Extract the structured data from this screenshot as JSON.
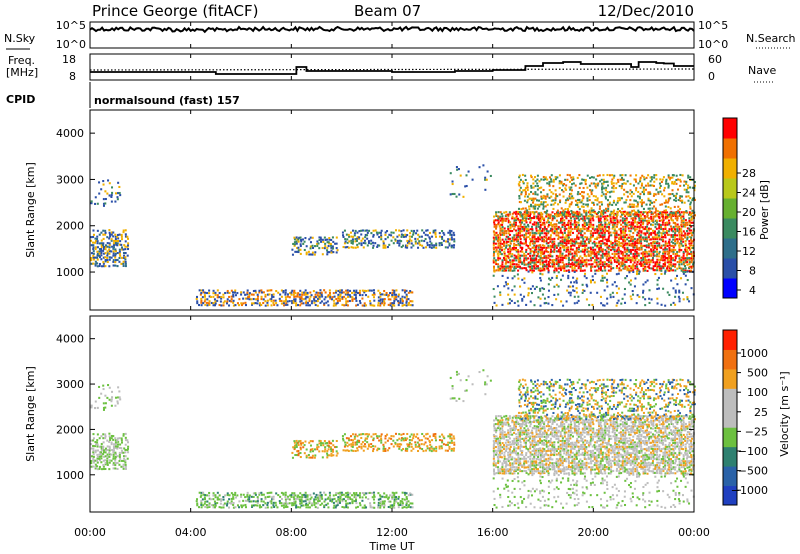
{
  "header": {
    "station": "Prince George (fitACF)",
    "beam": "Beam 07",
    "date": "12/Dec/2010",
    "cpid_label": "CPID",
    "cpid_value": "normalsound (fast) 157"
  },
  "nsky_panel": {
    "left_label": "N.Sky",
    "right_label": "N.Search",
    "left_ticks": [
      "10^5",
      "10^0"
    ],
    "right_ticks": [
      "10^5",
      "10^0"
    ]
  },
  "freq_panel": {
    "left_label_1": "Freq.",
    "left_label_2": "[MHz]",
    "right_label": "Nave",
    "left_ticks": [
      "18",
      "8"
    ],
    "right_ticks": [
      "60",
      "0"
    ]
  },
  "chart_data": [
    {
      "type": "heatmap",
      "name": "power",
      "ylabel": "Slant Range [km]",
      "ylim": [
        180,
        4500
      ],
      "y_ticks": [
        "1000",
        "2000",
        "3000",
        "4000"
      ],
      "colorbar_label": "Power [dB]",
      "colorbar_ticks": [
        "28",
        "24",
        "20",
        "16",
        "12",
        "8",
        "4"
      ],
      "colors": [
        "#0000ff",
        "#2a4fa8",
        "#2e6e8a",
        "#3a8a60",
        "#66b030",
        "#b8c81a",
        "#f0b000",
        "#f07000",
        "#ff0000"
      ]
    },
    {
      "type": "heatmap",
      "name": "velocity",
      "ylabel": "Slant Range [km]",
      "ylim": [
        180,
        4500
      ],
      "y_ticks": [
        "1000",
        "2000",
        "3000",
        "4000"
      ],
      "colorbar_label": "Velocity [m s⁻¹]",
      "colorbar_ticks": [
        "1000",
        "500",
        "100",
        "25",
        "−25",
        "−100",
        "−500",
        "−1000"
      ],
      "colors": [
        "#2040c0",
        "#2a62a8",
        "#2e8070",
        "#6cc040",
        "#bdbdbd",
        "#bdbdbd",
        "#f0a020",
        "#f07010",
        "#ff2000"
      ]
    }
  ],
  "x_axis": {
    "label": "Time UT",
    "ticks": [
      "00:00",
      "04:00",
      "08:00",
      "12:00",
      "16:00",
      "20:00",
      "00:00"
    ]
  }
}
